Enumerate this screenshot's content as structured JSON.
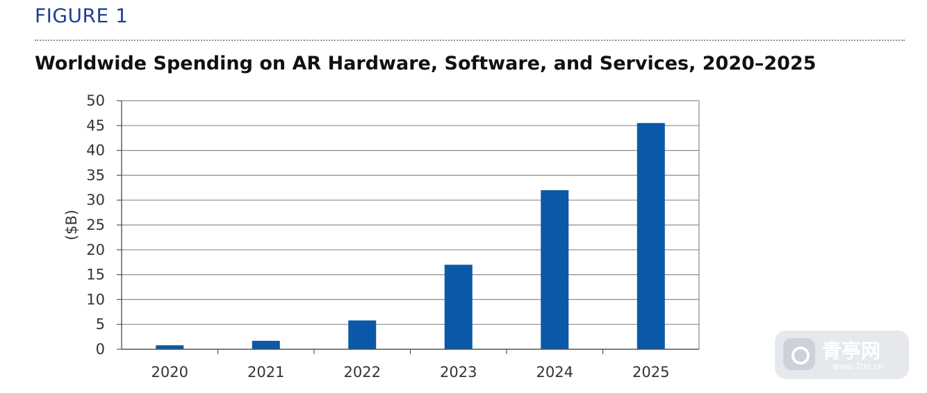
{
  "figure_label": "FIGURE 1",
  "watermark": {
    "brand": "青亭网",
    "url": "www.7tin.cn",
    "icon": "camera-logo-icon"
  },
  "colors": {
    "bar": "#0a58a7",
    "figure_label": "#1f3f8f",
    "grid": "#8c8c8c"
  },
  "chart_data": {
    "type": "bar",
    "title": "Worldwide Spending on AR Hardware, Software, and Services, 2020–2025",
    "xlabel": "",
    "ylabel": "($B)",
    "categories": [
      "2020",
      "2021",
      "2022",
      "2023",
      "2024",
      "2025"
    ],
    "values": [
      0.8,
      1.7,
      5.8,
      17.0,
      32.0,
      45.5
    ],
    "ylim": [
      0,
      50
    ],
    "yticks": [
      0,
      5,
      10,
      15,
      20,
      25,
      30,
      35,
      40,
      45,
      50
    ],
    "grid": true,
    "legend": "none"
  }
}
